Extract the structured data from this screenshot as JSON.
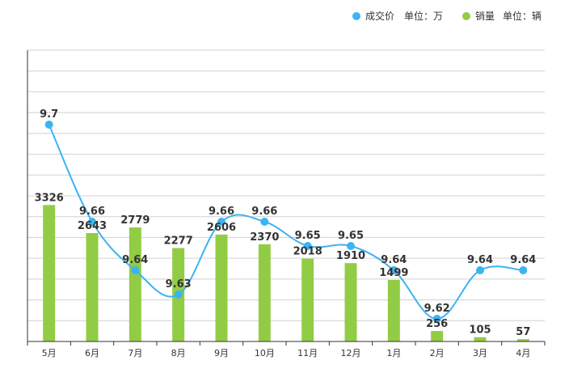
{
  "chart_data": {
    "type": "bar+line",
    "categories": [
      "5月",
      "6月",
      "7月",
      "8月",
      "9月",
      "10月",
      "11月",
      "12月",
      "1月",
      "2月",
      "3月",
      "4月"
    ],
    "series": [
      {
        "name": "成交价",
        "unit": "单位：万",
        "type": "line",
        "color": "#3bb4f2",
        "values": [
          9.7,
          9.66,
          9.64,
          9.63,
          9.66,
          9.66,
          9.65,
          9.65,
          9.64,
          9.62,
          9.64,
          9.64
        ],
        "labels": [
          "9.7",
          "9.66",
          "9.64",
          "9.63",
          "9.66",
          "9.66",
          "9.65",
          "9.65",
          "9.64",
          "9.62",
          "9.64",
          "9.64"
        ],
        "range": [
          9.59,
          9.71
        ]
      },
      {
        "name": "销量",
        "unit": "单位：辆",
        "type": "bar",
        "color": "#92cc45",
        "values": [
          3326,
          2643,
          2779,
          2277,
          2606,
          2370,
          2018,
          1910,
          1499,
          256,
          105,
          57
        ],
        "range": [
          0,
          7100
        ]
      }
    ],
    "legend": [
      {
        "name": "成交价",
        "unit": "单位：万",
        "color": "#3bb4f2"
      },
      {
        "name": "销量",
        "unit": "单位：辆",
        "color": "#92cc45"
      }
    ],
    "grid": true,
    "legend_position": "top-right"
  }
}
